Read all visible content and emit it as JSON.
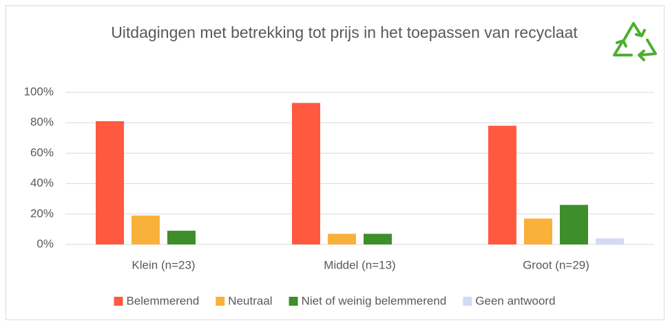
{
  "chart_data": {
    "type": "bar",
    "title": "Uitdagingen met betrekking tot prijs in het toepassen van recyclaat",
    "categories": [
      "Klein (n=23)",
      "Middel (n=13)",
      "Groot (n=29)"
    ],
    "series": [
      {
        "name": "Belemmerend",
        "color": "#ff5a40",
        "values": [
          81,
          93,
          78
        ]
      },
      {
        "name": "Neutraal",
        "color": "#f9b13a",
        "values": [
          19,
          7,
          17
        ]
      },
      {
        "name": "Niet of weinig belemmerend",
        "color": "#3e8e2c",
        "values": [
          9,
          7,
          26
        ]
      },
      {
        "name": "Geen antwoord",
        "color": "#d4daf5",
        "values": [
          0,
          0,
          4
        ]
      }
    ],
    "ylim": [
      0,
      100
    ],
    "yticks": [
      {
        "value": 0,
        "label": "0%"
      },
      {
        "value": 20,
        "label": "20%"
      },
      {
        "value": 40,
        "label": "40%"
      },
      {
        "value": 60,
        "label": "60%"
      },
      {
        "value": 80,
        "label": "80%"
      },
      {
        "value": 100,
        "label": "100%"
      }
    ],
    "grid": true,
    "legend": "bottom"
  }
}
